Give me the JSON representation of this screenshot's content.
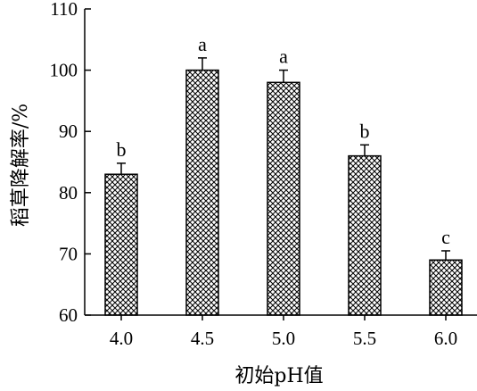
{
  "chart_data": {
    "type": "bar",
    "title": "",
    "xlabel": "初始pH值",
    "ylabel": "稻草降解率/%",
    "categories": [
      "4.0",
      "4.5",
      "5.0",
      "5.5",
      "6.0"
    ],
    "values": [
      83,
      100,
      98,
      86,
      69
    ],
    "errors": [
      1.8,
      2.0,
      2.0,
      1.8,
      1.5
    ],
    "significance": [
      "b",
      "a",
      "a",
      "b",
      "c"
    ],
    "ylim": [
      60,
      110
    ],
    "yticks": [
      "60",
      "70",
      "80",
      "90",
      "100",
      "110"
    ],
    "grid": false,
    "legend": "none",
    "bar_fill": "crosshatch",
    "colors": {
      "axis": "#000000",
      "bar_stroke": "#000000",
      "hatch": "#000000",
      "background": "#ffffff"
    }
  }
}
